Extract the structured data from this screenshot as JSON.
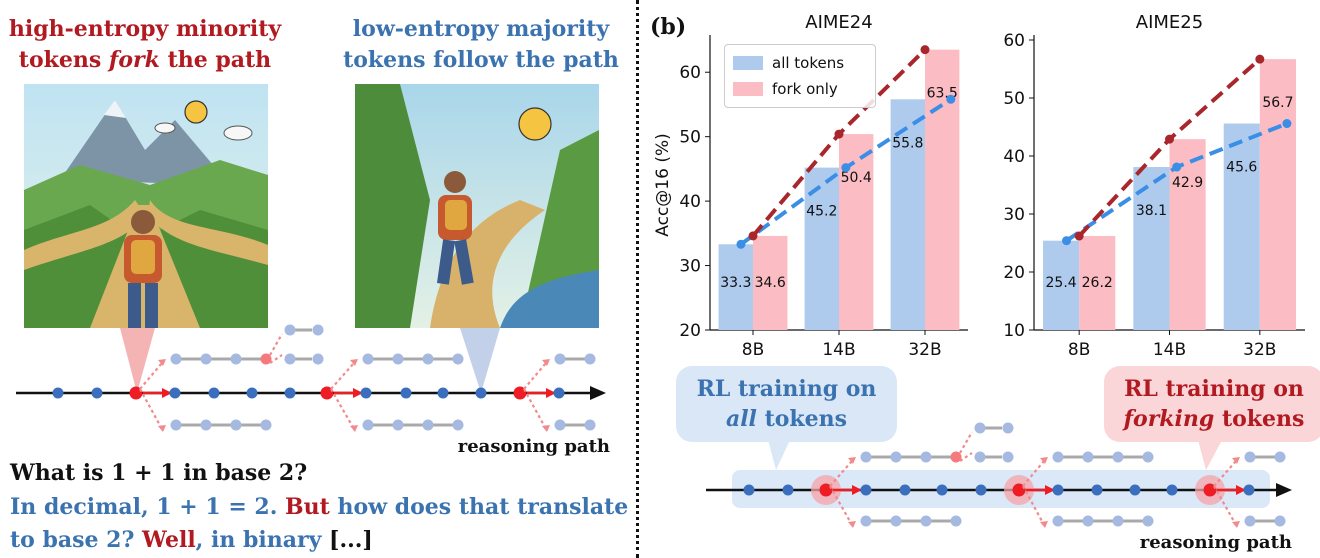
{
  "left": {
    "fork_caption": {
      "line1": "high-entropy minority",
      "line2a": "tokens ",
      "line2b": "fork",
      "line2c": " the path"
    },
    "follow_caption": {
      "line1": "low-entropy majority",
      "line2": "tokens follow the path"
    },
    "path_label": "reasoning path",
    "question": "What is 1 + 1 in base 2?",
    "answer": {
      "p1": "In decimal, 1 + 1 = 2. ",
      "p2": "But",
      "p3": " how does that translate",
      "p4": "to base 2? ",
      "p5": "Well",
      "p6": ", in binary ",
      "p7": "[...]"
    }
  },
  "panel_label": "(b)",
  "chart_data": [
    {
      "type": "bar",
      "title": "AIME24",
      "ylabel": "Acc@16 (%)",
      "categories": [
        "8B",
        "14B",
        "32B"
      ],
      "ylim": [
        20,
        65
      ],
      "yticks": [
        20,
        30,
        40,
        50,
        60
      ],
      "series": [
        {
          "name": "all tokens",
          "values": [
            33.3,
            45.2,
            55.8
          ],
          "color": "#aecbed",
          "line_color": "#3a8ee6"
        },
        {
          "name": "fork only",
          "values": [
            34.6,
            50.4,
            63.5
          ],
          "color": "#fbbcc3",
          "line_color": "#a8262c"
        }
      ],
      "legend": "top-left"
    },
    {
      "type": "bar",
      "title": "AIME25",
      "ylabel": "",
      "categories": [
        "8B",
        "14B",
        "32B"
      ],
      "ylim": [
        10,
        60
      ],
      "yticks": [
        10,
        20,
        30,
        40,
        50,
        60
      ],
      "series": [
        {
          "name": "all tokens",
          "values": [
            25.4,
            38.1,
            45.6
          ],
          "color": "#aecbed",
          "line_color": "#3a8ee6"
        },
        {
          "name": "fork only",
          "values": [
            26.2,
            42.9,
            56.7
          ],
          "color": "#fbbcc3",
          "line_color": "#a8262c"
        }
      ]
    }
  ],
  "right": {
    "rl_all": {
      "line1": "RL training on",
      "line2a": "all",
      "line2b": " tokens"
    },
    "rl_fork": {
      "line1": "RL training on",
      "line2a": "forking",
      "line2b": " tokens"
    },
    "path_label": "reasoning path"
  }
}
